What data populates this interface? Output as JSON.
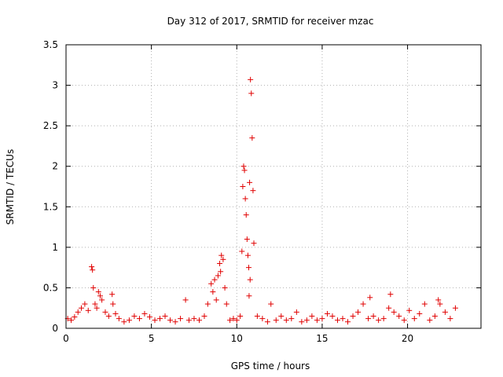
{
  "chart_data": {
    "type": "scatter",
    "title": "Day 312 of 2017, SRMTID for receiver mzac",
    "xlabel": "GPS time / hours",
    "ylabel": "SRMTID / TECUs",
    "xlim": [
      0,
      24.3
    ],
    "ylim": [
      0,
      3.5
    ],
    "xticks": [
      0,
      5,
      10,
      15,
      20
    ],
    "yticks": [
      0,
      0.5,
      1,
      1.5,
      2,
      2.5,
      3,
      3.5
    ],
    "xtick_labels": [
      "0",
      "5",
      "10",
      "15",
      "20"
    ],
    "ytick_labels": [
      "0",
      "0.5",
      "1",
      "1.5",
      "2",
      "2.5",
      "3",
      "3.5"
    ],
    "grid": true,
    "marker": "+",
    "color": "#e00000",
    "series": [
      {
        "name": "SRMTID",
        "x": [
          0.1,
          0.3,
          0.5,
          0.7,
          0.9,
          1.1,
          1.3,
          1.5,
          1.55,
          1.6,
          1.7,
          1.8,
          1.9,
          2.0,
          2.1,
          2.3,
          2.5,
          2.7,
          2.75,
          2.9,
          3.1,
          3.4,
          3.7,
          4.0,
          4.3,
          4.6,
          4.9,
          5.2,
          5.5,
          5.8,
          6.1,
          6.4,
          6.7,
          7.0,
          7.2,
          7.5,
          7.8,
          8.1,
          8.3,
          8.5,
          8.6,
          8.7,
          8.8,
          8.9,
          9.0,
          9.05,
          9.1,
          9.2,
          9.3,
          9.4,
          9.6,
          9.8,
          10.0,
          10.2,
          10.3,
          10.35,
          10.4,
          10.45,
          10.5,
          10.55,
          10.6,
          10.65,
          10.7,
          10.72,
          10.75,
          10.78,
          10.8,
          10.85,
          10.9,
          10.95,
          11.0,
          11.2,
          11.5,
          11.8,
          12.0,
          12.3,
          12.6,
          12.9,
          13.2,
          13.5,
          13.8,
          14.1,
          14.4,
          14.7,
          15.0,
          15.3,
          15.6,
          15.9,
          16.2,
          16.5,
          16.8,
          17.1,
          17.4,
          17.7,
          17.8,
          18.0,
          18.3,
          18.6,
          18.9,
          19.0,
          19.2,
          19.5,
          19.8,
          20.1,
          20.4,
          20.7,
          21.0,
          21.3,
          21.6,
          21.8,
          21.9,
          22.2,
          22.5,
          22.8
        ],
        "y": [
          0.12,
          0.1,
          0.14,
          0.2,
          0.25,
          0.3,
          0.22,
          0.76,
          0.72,
          0.5,
          0.3,
          0.25,
          0.45,
          0.4,
          0.35,
          0.2,
          0.15,
          0.42,
          0.3,
          0.18,
          0.12,
          0.08,
          0.1,
          0.15,
          0.12,
          0.18,
          0.14,
          0.1,
          0.12,
          0.15,
          0.1,
          0.08,
          0.12,
          0.35,
          0.1,
          0.12,
          0.1,
          0.15,
          0.3,
          0.55,
          0.45,
          0.6,
          0.35,
          0.65,
          0.8,
          0.7,
          0.9,
          0.85,
          0.5,
          0.3,
          0.1,
          0.12,
          0.1,
          0.15,
          0.95,
          1.75,
          2.0,
          1.95,
          1.6,
          1.4,
          1.1,
          0.9,
          0.75,
          0.4,
          1.8,
          0.6,
          3.07,
          2.9,
          2.35,
          1.7,
          1.05,
          0.15,
          0.12,
          0.08,
          0.3,
          0.1,
          0.15,
          0.1,
          0.12,
          0.2,
          0.08,
          0.1,
          0.15,
          0.1,
          0.12,
          0.18,
          0.15,
          0.1,
          0.12,
          0.08,
          0.15,
          0.2,
          0.3,
          0.12,
          0.38,
          0.15,
          0.1,
          0.12,
          0.25,
          0.42,
          0.2,
          0.15,
          0.1,
          0.22,
          0.12,
          0.18,
          0.3,
          0.1,
          0.15,
          0.35,
          0.3,
          0.2,
          0.12,
          0.25
        ]
      }
    ]
  }
}
